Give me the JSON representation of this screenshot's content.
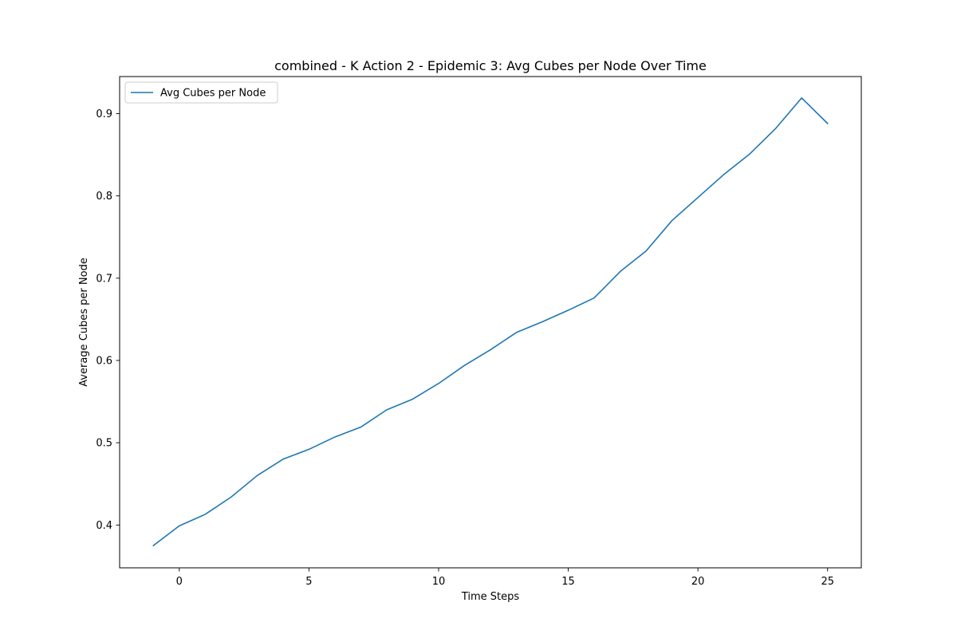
{
  "chart_data": {
    "type": "line",
    "title": "combined - K Action 2 - Epidemic 3: Avg Cubes per Node Over Time",
    "xlabel": "Time Steps",
    "ylabel": "Average Cubes per Node",
    "xlim": [
      -2.3,
      26.3
    ],
    "ylim": [
      0.348,
      0.945
    ],
    "xticks": [
      0,
      5,
      10,
      15,
      20,
      25
    ],
    "yticks": [
      0.4,
      0.5,
      0.6,
      0.7,
      0.8,
      0.9
    ],
    "grid": false,
    "legend_position": "top-left",
    "series": [
      {
        "name": "Avg Cubes per Node",
        "color": "#1f77b4",
        "x": [
          -1,
          0,
          1,
          2,
          3,
          4,
          5,
          6,
          7,
          8,
          9,
          10,
          11,
          12,
          13,
          14,
          15,
          16,
          17,
          18,
          19,
          20,
          21,
          22,
          23,
          24,
          25
        ],
        "y": [
          0.375,
          0.399,
          0.413,
          0.434,
          0.46,
          0.48,
          0.492,
          0.507,
          0.519,
          0.54,
          0.553,
          0.572,
          0.594,
          0.613,
          0.634,
          0.647,
          0.661,
          0.676,
          0.708,
          0.733,
          0.77,
          0.798,
          0.826,
          0.851,
          0.882,
          0.919,
          0.888
        ]
      }
    ]
  }
}
